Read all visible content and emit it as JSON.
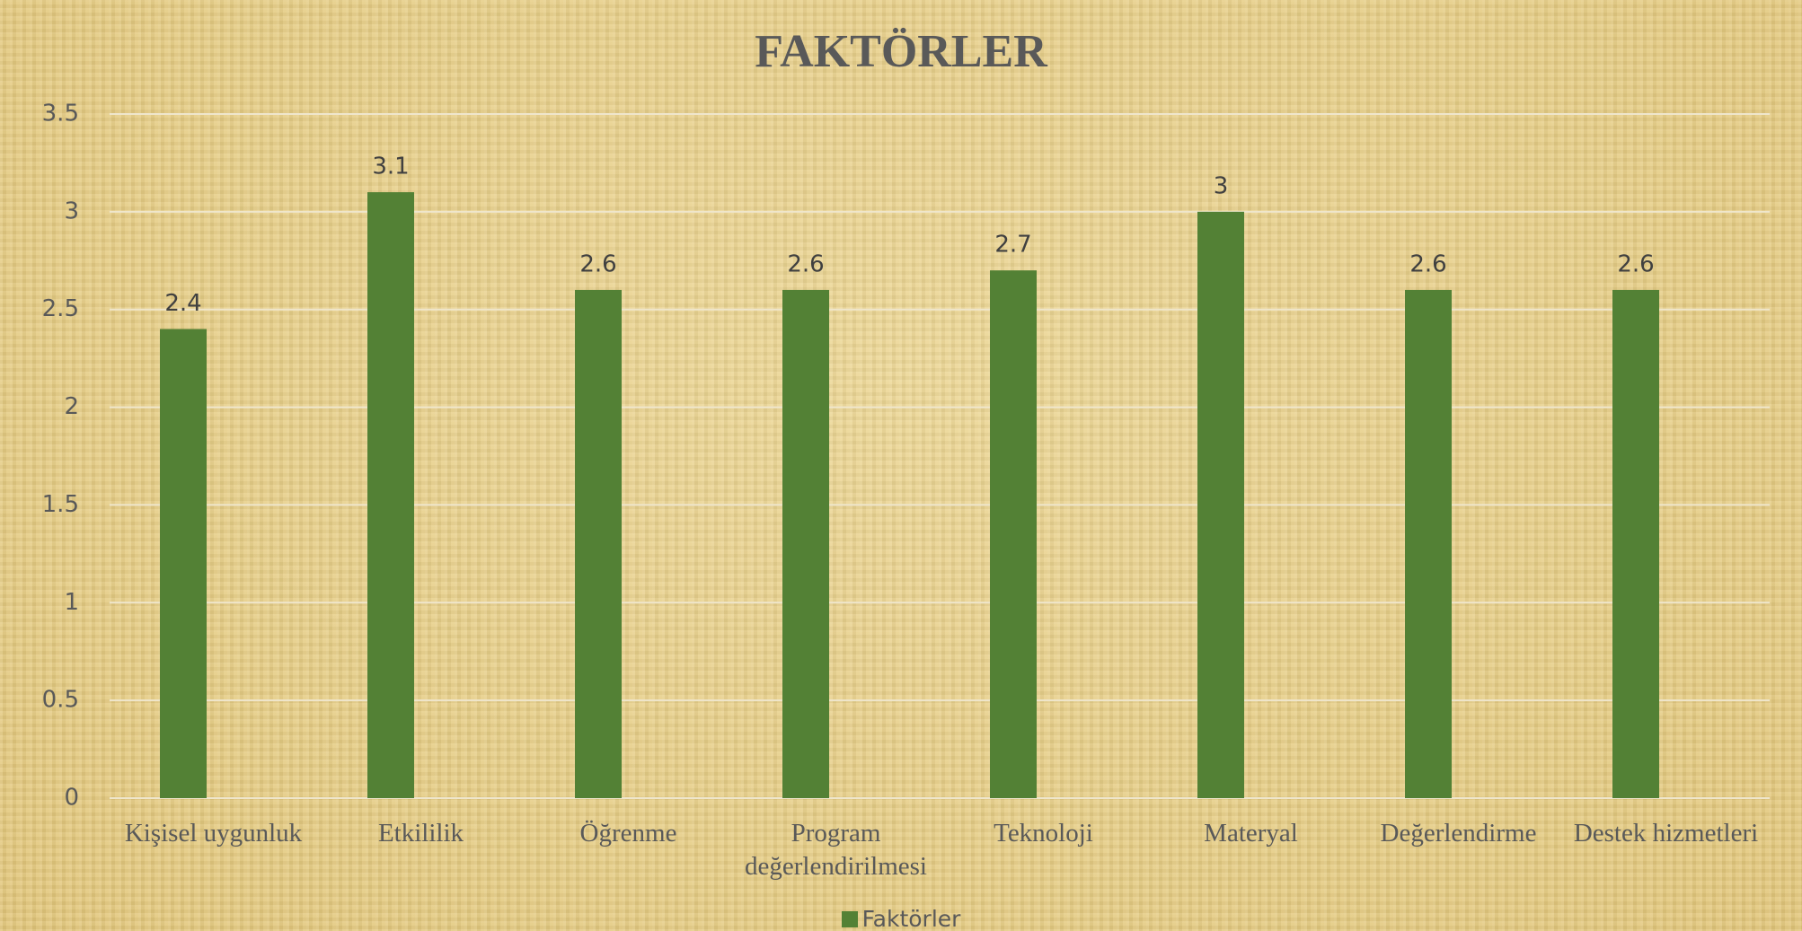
{
  "chart_data": {
    "type": "bar",
    "title": "FAKTÖRLER",
    "categories": [
      "Kişisel uygunluk",
      "Etkililik",
      "Öğrenme",
      "Program değerlendirilmesi",
      "Teknoloji",
      "Materyal",
      "Değerlendirme",
      "Destek hizmetleri"
    ],
    "series": [
      {
        "name": "Faktörler",
        "color": "#538135",
        "values": [
          2.4,
          3.1,
          2.6,
          2.6,
          2.7,
          3,
          2.6,
          2.6
        ]
      }
    ],
    "ylim": [
      0,
      3.5
    ],
    "yticks": [
      0,
      0.5,
      1,
      1.5,
      2,
      2.5,
      3,
      3.5
    ],
    "grid": true,
    "legend": "bottom"
  }
}
